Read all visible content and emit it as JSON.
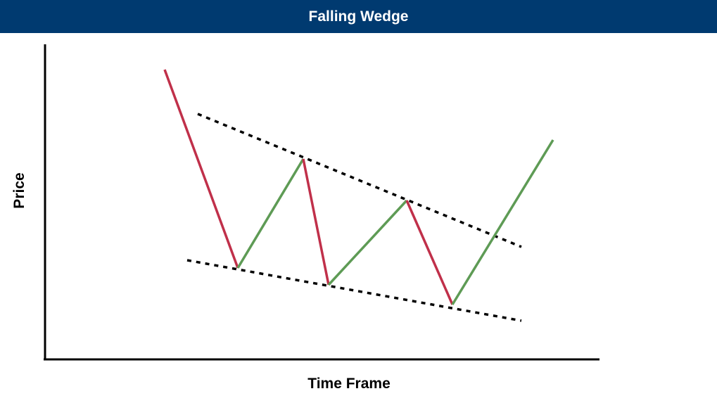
{
  "title": "Falling Wedge",
  "xlabel": "Time Frame",
  "ylabel": "Price",
  "colors": {
    "header": "#003a70",
    "down": "#c0304a",
    "up": "#5e9b55",
    "trendline": "#000000",
    "axis": "#000000"
  }
}
